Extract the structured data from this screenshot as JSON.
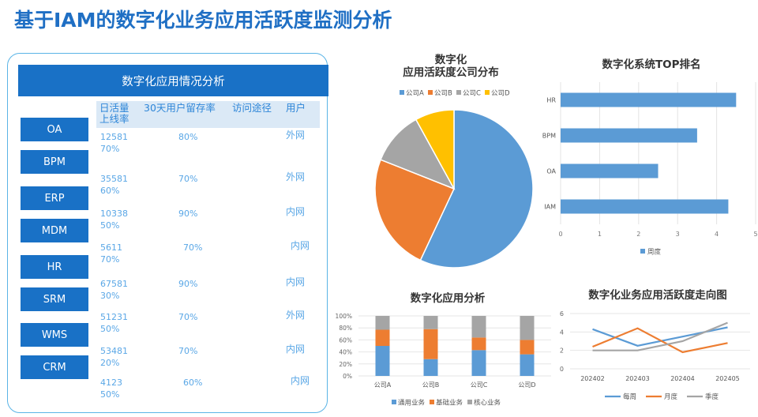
{
  "title": "基于IAM的数字化业务应用活跃度监测分析",
  "table": {
    "header": "数字化应用情况分析",
    "columns": [
      "日活量\n上线率",
      "30天用户留存率",
      "访问途径",
      "用户"
    ],
    "rows": [
      {
        "app": "OA",
        "daily": "12581",
        "online": "70%",
        "retention": "80%",
        "access": "",
        "user": "外网"
      },
      {
        "app": "BPM",
        "daily": "35581",
        "online": "60%",
        "retention": "70%",
        "access": "",
        "user": "外网"
      },
      {
        "app": "ERP",
        "daily": "10338",
        "online": "50%",
        "retention": "90%",
        "access": "",
        "user": "内网"
      },
      {
        "app": "MDM",
        "daily": "5611",
        "online": "70%",
        "retention": "70%",
        "access": "",
        "user": "内网"
      },
      {
        "app": "HR",
        "daily": "67581",
        "online": "30%",
        "retention": "90%",
        "access": "",
        "user": "内网"
      },
      {
        "app": "SRM",
        "daily": "51231",
        "online": "50%",
        "retention": "70%",
        "access": "",
        "user": "外网"
      },
      {
        "app": "WMS",
        "daily": "53481",
        "online": "20%",
        "retention": "70%",
        "access": "",
        "user": "内网"
      },
      {
        "app": "CRM",
        "daily": "4123",
        "online": "50%",
        "retention": "60%",
        "access": "",
        "user": "内网"
      }
    ]
  },
  "chart_data": [
    {
      "type": "pie",
      "title": "数字化\n应用活跃度公司分布",
      "categories": [
        "公司A",
        "公司B",
        "公司C",
        "公司D"
      ],
      "values": [
        57,
        24,
        11,
        8
      ],
      "colors": [
        "#5b9bd5",
        "#ed7d31",
        "#a5a5a5",
        "#ffc000"
      ],
      "legend": "top"
    },
    {
      "type": "bar",
      "orientation": "horizontal",
      "title": "数字化系统TOP排名",
      "categories": [
        "HR",
        "BPM",
        "OA",
        "IAM"
      ],
      "series": [
        {
          "name": "周度",
          "values": [
            4.5,
            3.5,
            2.5,
            4.3
          ]
        }
      ],
      "xlim": [
        0,
        5
      ],
      "ticks": [
        0,
        1,
        2,
        3,
        4,
        5
      ],
      "color": "#5b9bd5",
      "legend": "bottom"
    },
    {
      "type": "bar",
      "stacked": true,
      "title": "数字化应用分析",
      "categories": [
        "公司A",
        "公司B",
        "公司C",
        "公司D"
      ],
      "series": [
        {
          "name": "通用业务",
          "values": [
            50,
            28,
            43,
            36
          ],
          "color": "#5b9bd5"
        },
        {
          "name": "基础业务",
          "values": [
            27,
            50,
            21,
            24
          ],
          "color": "#ed7d31"
        },
        {
          "name": "核心业务",
          "values": [
            23,
            22,
            36,
            40
          ],
          "color": "#a5a5a5"
        }
      ],
      "ylim": [
        0,
        100
      ],
      "ticks": [
        "0%",
        "20%",
        "40%",
        "60%",
        "80%",
        "100%"
      ],
      "legend": "bottom"
    },
    {
      "type": "line",
      "title": "数字化业务应用活跃度走向图",
      "x": [
        "202402",
        "202403",
        "202404",
        "202405"
      ],
      "series": [
        {
          "name": "每周",
          "values": [
            4.3,
            2.5,
            3.5,
            4.5
          ],
          "color": "#5b9bd5"
        },
        {
          "name": "月度",
          "values": [
            2.4,
            4.4,
            1.8,
            2.8
          ],
          "color": "#ed7d31"
        },
        {
          "name": "季度",
          "values": [
            2.0,
            2.0,
            3.0,
            5.0
          ],
          "color": "#a5a5a5"
        }
      ],
      "ylim": [
        0,
        6
      ],
      "ticks": [
        0,
        2,
        4,
        6
      ],
      "legend": "bottom"
    }
  ]
}
